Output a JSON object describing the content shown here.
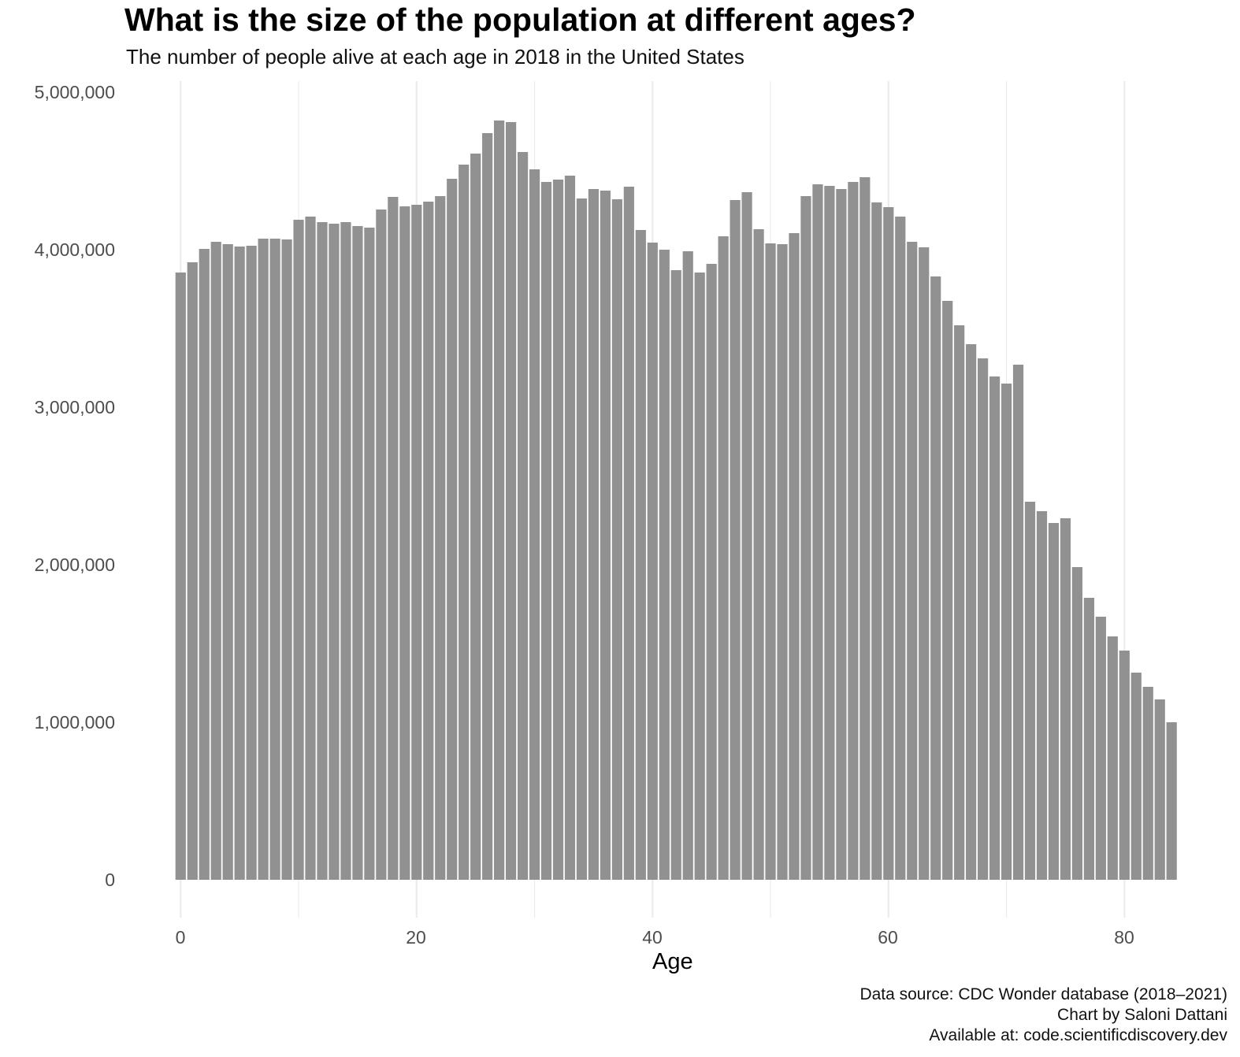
{
  "title": "What is the size of the population at different ages?",
  "subtitle": "The number of people alive at each age in 2018 in the United States",
  "caption": {
    "line1": "Data source: CDC Wonder database (2018–2021)",
    "line2": "Chart by Saloni Dattani",
    "line3": "Available at: code.scientificdiscovery.dev"
  },
  "colors": {
    "bar": "#919191",
    "grid": "#ebebeb",
    "background": "#ffffff"
  },
  "chart_data": {
    "type": "bar",
    "title": "What is the size of the population at different ages?",
    "subtitle": "The number of people alive at each age in 2018 in the United States",
    "xlabel": "Age",
    "ylabel": "",
    "ylim": [
      0,
      5000000
    ],
    "xlim": [
      -0.5,
      84.5
    ],
    "grid": {
      "x_major": true,
      "y_major": false
    },
    "legend": null,
    "y_ticks": [
      "0",
      "1,000,000",
      "2,000,000",
      "3,000,000",
      "4,000,000",
      "5,000,000"
    ],
    "y_tick_values": [
      0,
      1000000,
      2000000,
      3000000,
      4000000,
      5000000
    ],
    "x_ticks": [
      "0",
      "20",
      "40",
      "60",
      "80"
    ],
    "x_tick_values": [
      0,
      20,
      40,
      60,
      80
    ],
    "categories": [
      0,
      1,
      2,
      3,
      4,
      5,
      6,
      7,
      8,
      9,
      10,
      11,
      12,
      13,
      14,
      15,
      16,
      17,
      18,
      19,
      20,
      21,
      22,
      23,
      24,
      25,
      26,
      27,
      28,
      29,
      30,
      31,
      32,
      33,
      34,
      35,
      36,
      37,
      38,
      39,
      40,
      41,
      42,
      43,
      44,
      45,
      46,
      47,
      48,
      49,
      50,
      51,
      52,
      53,
      54,
      55,
      56,
      57,
      58,
      59,
      60,
      61,
      62,
      63,
      64,
      65,
      66,
      67,
      68,
      69,
      70,
      71,
      72,
      73,
      74,
      75,
      76,
      77,
      78,
      79,
      80,
      81,
      82,
      83,
      84
    ],
    "values": [
      3855000,
      3920000,
      4005000,
      4050000,
      4035000,
      4020000,
      4025000,
      4070000,
      4070000,
      4065000,
      4190000,
      4210000,
      4175000,
      4165000,
      4175000,
      4150000,
      4140000,
      4255000,
      4335000,
      4275000,
      4285000,
      4305000,
      4340000,
      4450000,
      4540000,
      4610000,
      4740000,
      4820000,
      4810000,
      4620000,
      4510000,
      4430000,
      4445000,
      4470000,
      4325000,
      4385000,
      4375000,
      4320000,
      4400000,
      4125000,
      4045000,
      4000000,
      3870000,
      3990000,
      3855000,
      3910000,
      4085000,
      4315000,
      4365000,
      4130000,
      4040000,
      4035000,
      4105000,
      4340000,
      4415000,
      4405000,
      4385000,
      4430000,
      4460000,
      4300000,
      4270000,
      4210000,
      4050000,
      4015000,
      3830000,
      3675000,
      3520000,
      3400000,
      3310000,
      3195000,
      3150000,
      3270000,
      2400000,
      2340000,
      2265000,
      2295000,
      1985000,
      1790000,
      1670000,
      1545000,
      1455000,
      1315000,
      1225000,
      1145000,
      1000000
    ]
  }
}
